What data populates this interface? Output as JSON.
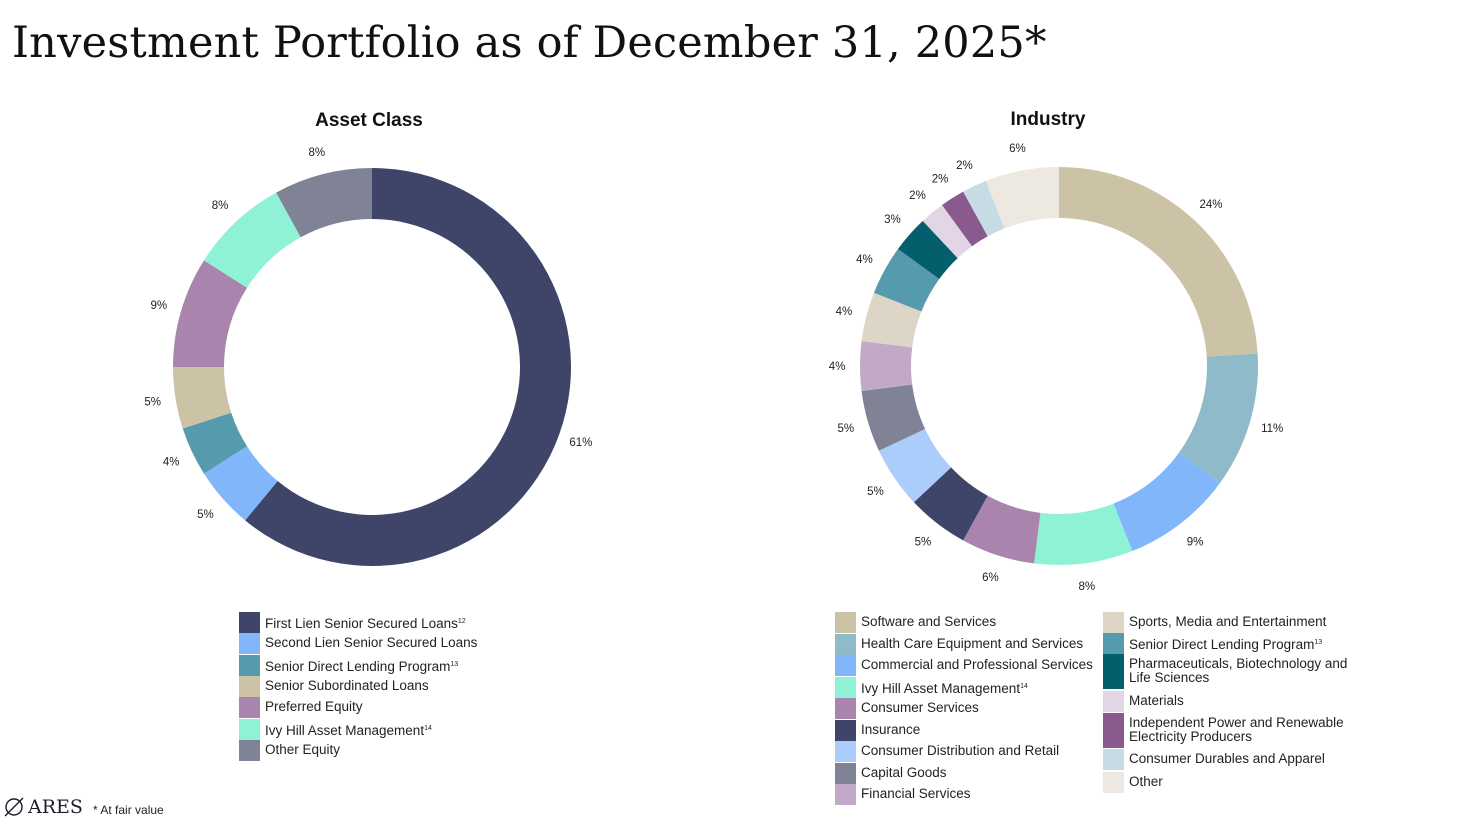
{
  "page": {
    "title": "Investment Portfolio as of December 31, 2025*",
    "footnote": "* At fair value",
    "logo_text": "ARES"
  },
  "chart_data": [
    {
      "type": "pie",
      "id": "asset-class",
      "title": "Asset Class",
      "donut": true,
      "slices": [
        {
          "label": "First Lien Senior Secured Loans",
          "sup": "12",
          "value": 61,
          "display": "61%",
          "color": "#3f4568"
        },
        {
          "label": "Second Lien Senior Secured Loans",
          "sup": "",
          "value": 5,
          "display": "5%",
          "color": "#82b6fb"
        },
        {
          "label": "Senior Direct Lending Program",
          "sup": "13",
          "value": 4,
          "display": "4%",
          "color": "#559aad"
        },
        {
          "label": "Senior Subordinated Loans",
          "sup": "",
          "value": 5,
          "display": "5%",
          "color": "#ccc2a6"
        },
        {
          "label": "Preferred Equity",
          "sup": "",
          "value": 9,
          "display": "9%",
          "color": "#a985ad"
        },
        {
          "label": "Ivy Hill Asset Management",
          "sup": "14",
          "value": 8,
          "display": "8%",
          "color": "#8ff2d6"
        },
        {
          "label": "Other Equity",
          "sup": "",
          "value": 8,
          "display": "8%",
          "color": "#808296"
        }
      ]
    },
    {
      "type": "pie",
      "id": "industry",
      "title": "Industry",
      "donut": true,
      "slices": [
        {
          "label": "Software and Services",
          "sup": "",
          "value": 24,
          "display": "24%",
          "color": "#ccc2a6"
        },
        {
          "label": "Health Care Equipment and Services",
          "sup": "",
          "value": 11,
          "display": "11%",
          "color": "#8fbaca"
        },
        {
          "label": "Commercial and Professional Services",
          "sup": "",
          "value": 9,
          "display": "9%",
          "color": "#82b6fb"
        },
        {
          "label": "Ivy Hill Asset Management",
          "sup": "14",
          "value": 8,
          "display": "8%",
          "color": "#8ff2d6"
        },
        {
          "label": "Consumer Services",
          "sup": "",
          "value": 6,
          "display": "6%",
          "color": "#a985ad"
        },
        {
          "label": "Insurance",
          "sup": "",
          "value": 5,
          "display": "5%",
          "color": "#3f4568"
        },
        {
          "label": "Consumer Distribution and Retail",
          "sup": "",
          "value": 5,
          "display": "5%",
          "color": "#aacdfc"
        },
        {
          "label": "Capital Goods",
          "sup": "",
          "value": 5,
          "display": "5%",
          "color": "#808296"
        },
        {
          "label": "Financial Services",
          "sup": "",
          "value": 4,
          "display": "4%",
          "color": "#c2a9c7"
        },
        {
          "label": "Sports, Media and Entertainment",
          "sup": "",
          "value": 4,
          "display": "4%",
          "color": "#ddd6c6"
        },
        {
          "label": "Senior Direct Lending Program",
          "sup": "13",
          "value": 4,
          "display": "4%",
          "color": "#559aad"
        },
        {
          "label": "Pharmaceuticals, Biotechnology and Life Sciences",
          "sup": "",
          "value": 3,
          "display": "3%",
          "color": "#045e6b"
        },
        {
          "label": "Materials",
          "sup": "",
          "value": 2,
          "display": "2%",
          "color": "#e2d6e6"
        },
        {
          "label": "Independent Power and Renewable Electricity Producers",
          "sup": "",
          "value": 2,
          "display": "2%",
          "color": "#8a5a8f"
        },
        {
          "label": "Consumer Durables and Apparel",
          "sup": "",
          "value": 2,
          "display": "2%",
          "color": "#c6dbe4"
        },
        {
          "label": "Other",
          "sup": "",
          "value": 6,
          "display": "6%",
          "color": "#ede9e0"
        }
      ]
    }
  ]
}
